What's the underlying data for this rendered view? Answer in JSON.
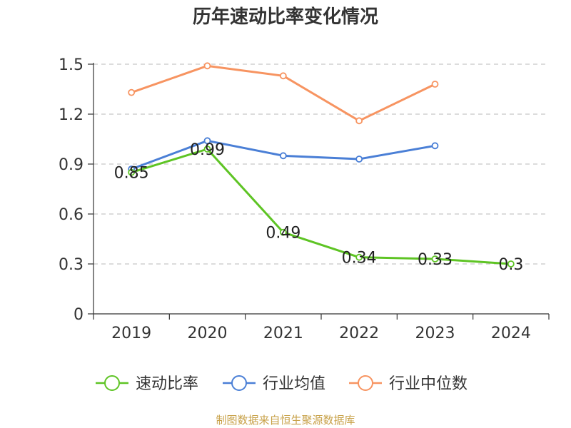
{
  "chart_data": {
    "type": "line",
    "title": "历年速动比率变化情况",
    "categories": [
      "2019",
      "2020",
      "2021",
      "2022",
      "2023",
      "2024"
    ],
    "ylim": [
      0,
      1.5
    ],
    "yticks": [
      "0",
      "0.3",
      "0.6",
      "0.9",
      "1.2",
      "1.5"
    ],
    "grid": true,
    "legend_position": "bottom",
    "series": [
      {
        "name": "速动比率",
        "color": "#5ec424",
        "values": [
          0.85,
          0.99,
          0.49,
          0.34,
          0.33,
          0.3
        ],
        "labels": [
          "0.85",
          "0.99",
          "0.49",
          "0.34",
          "0.33",
          "0.3"
        ]
      },
      {
        "name": "行业均值",
        "color": "#4a7fd6",
        "values": [
          0.87,
          1.04,
          0.95,
          0.93,
          1.01,
          null
        ]
      },
      {
        "name": "行业中位数",
        "color": "#f79461",
        "values": [
          1.33,
          1.49,
          1.43,
          1.16,
          1.38,
          null
        ]
      }
    ]
  },
  "source": "制图数据来自恒生聚源数据库"
}
